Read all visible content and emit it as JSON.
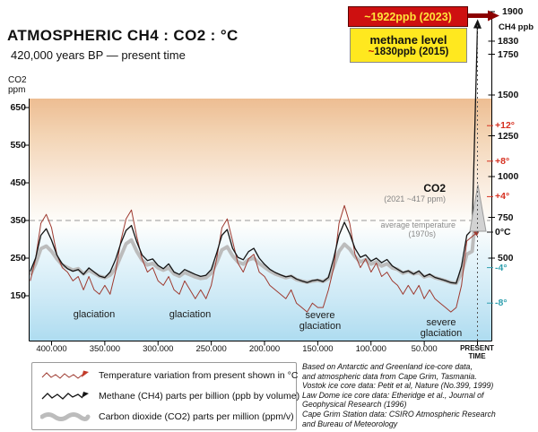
{
  "header": {
    "title": "ATMOSPHERIC  CH4 : CO2 : °C",
    "subtitle": "420,000 years BP — present time"
  },
  "callouts": {
    "methane_2023": "~1922ppb (2023)",
    "methane_level_title": "methane level",
    "methane_2015_prefix": "~",
    "methane_2015_value": "1830ppb (2015)"
  },
  "axes": {
    "top_right_value": "1900",
    "ch4_unit": "CH4 ppb",
    "co2_unit_line1": "CO2",
    "co2_unit_line2": "ppm",
    "co2_ticks": [
      650,
      550,
      450,
      350,
      250,
      150
    ],
    "ch4_ticks": [
      1830,
      1750,
      1500,
      1250,
      1000,
      750,
      500
    ],
    "temp_ticks": [
      "+12°",
      "+8°",
      "+4°",
      "0°C",
      "-4°",
      "-8°"
    ],
    "x_tick_labels": [
      "400.000",
      "350.000",
      "300.000",
      "250.000",
      "200.000",
      "150.000",
      "100.000",
      "50.000"
    ],
    "present_line1": "PRESENT",
    "present_line2": "TIME"
  },
  "annotations": {
    "glaciation_1": "glaciation",
    "glaciation_2": "glaciation",
    "severe_1_line1": "severe",
    "severe_1_line2": "glaciation",
    "severe_2_line1": "severe",
    "severe_2_line2": "glaciation",
    "co2_label": "CO2",
    "co2_sublabel": "(2021 ~417 ppm)",
    "avg_temp_line1": "average temperature",
    "avg_temp_line2": "(1970s)"
  },
  "legend": {
    "items": [
      {
        "label": "Temperature variation from present shown in °C"
      },
      {
        "label": "Methane (CH4) parts per billion (ppb by volume)"
      },
      {
        "label": "Carbon dioxide (CO2) parts per million (ppm/v)"
      }
    ]
  },
  "source": {
    "lines": [
      "Based on Antarctic and Greenland ice-core data,",
      "and atmospheric data from Cape Grim, Tasmania.",
      "Vostok ice core data: Petit et al, Nature (No.399, 1999)",
      "Law Dome ice core data: Etheridge et al., Journal of",
      "Geophysical Research (1996)",
      "Cape Grim Station data: CSIRO Atmospheric Research",
      "and Bureau of Meteorology"
    ]
  },
  "colors": {
    "red_box_bg": "#ce1010",
    "red_box_text": "#ffe43a",
    "yellow_box_bg": "#ffe81f",
    "dark_red_arrow": "#8b0000",
    "warm_tick": "#d63020",
    "cool_tick": "#2f9fae",
    "temp_line": "#9e3a30",
    "ch4_line": "#141414",
    "co2_line": "#bcbcbc"
  },
  "chart_data": {
    "type": "line",
    "title": "Atmospheric CH4, CO2 and temperature — 420,000 years BP to present",
    "x_unit": "thousand years before present",
    "x_range_kyr": [
      420,
      0
    ],
    "x_kyr_bp": [
      420,
      415,
      410,
      405,
      400,
      395,
      390,
      385,
      380,
      375,
      370,
      365,
      360,
      355,
      350,
      345,
      340,
      335,
      330,
      325,
      320,
      315,
      310,
      305,
      300,
      295,
      290,
      285,
      280,
      275,
      270,
      265,
      260,
      255,
      250,
      245,
      240,
      235,
      230,
      225,
      220,
      215,
      210,
      205,
      200,
      195,
      190,
      185,
      180,
      175,
      170,
      165,
      160,
      155,
      150,
      145,
      140,
      135,
      130,
      125,
      120,
      115,
      110,
      105,
      100,
      95,
      90,
      85,
      80,
      75,
      70,
      65,
      60,
      55,
      50,
      45,
      40,
      35,
      30,
      25,
      20,
      15,
      10,
      5,
      0
    ],
    "series": [
      {
        "name": "Temperature variation from present (°C)",
        "unit": "°C",
        "color": "#9e3a30",
        "axis_ticks": [
          12,
          8,
          4,
          0,
          -4,
          -8
        ],
        "values": [
          -5.5,
          -3,
          1,
          2,
          0.5,
          -2.5,
          -4,
          -4.5,
          -5.5,
          -5,
          -6.5,
          -5,
          -6.5,
          -7,
          -6,
          -7,
          -4.5,
          -1,
          1.5,
          2.5,
          -0.5,
          -3,
          -4.5,
          -4,
          -5.5,
          -6,
          -5,
          -6.5,
          -7,
          -5.5,
          -6.5,
          -7.5,
          -6.5,
          -7.5,
          -6,
          -3,
          0.5,
          1.5,
          -1,
          -3.5,
          -4.5,
          -3,
          -2.5,
          -4.5,
          -5,
          -6,
          -6.5,
          -7,
          -7.5,
          -6.5,
          -8,
          -8.5,
          -9,
          -8,
          -8.5,
          -8.5,
          -6.5,
          -4,
          1,
          3,
          1,
          -2.5,
          -4,
          -3,
          -4.5,
          -3.5,
          -5,
          -4.5,
          -5.5,
          -6,
          -7,
          -6,
          -7,
          -6,
          -7.5,
          -6.5,
          -7.5,
          -8,
          -8.5,
          -9,
          -8.5,
          -6,
          -1,
          -0.5,
          0
        ]
      },
      {
        "name": "Methane CH4 (ppb)",
        "unit": "ppb",
        "color": "#141414",
        "axis_ticks": [
          1900,
          1830,
          1750,
          1500,
          1250,
          1000,
          750,
          500
        ],
        "values": [
          420,
          500,
          640,
          680,
          610,
          520,
          465,
          435,
          420,
          430,
          400,
          440,
          415,
          390,
          380,
          415,
          490,
          590,
          670,
          700,
          600,
          520,
          485,
          495,
          455,
          435,
          465,
          415,
          400,
          430,
          415,
          400,
          388,
          395,
          430,
          530,
          640,
          675,
          560,
          505,
          490,
          540,
          560,
          500,
          462,
          432,
          412,
          398,
          385,
          392,
          372,
          360,
          350,
          362,
          367,
          356,
          382,
          500,
          640,
          720,
          650,
          560,
          505,
          520,
          482,
          500,
          472,
          492,
          452,
          432,
          412,
          422,
          402,
          422,
          387,
          402,
          382,
          372,
          362,
          350,
          346,
          450,
          640,
          675,
          1922
        ]
      },
      {
        "name": "Carbon dioxide CO2 (ppm)",
        "unit": "ppm",
        "color": "#bcbcbc",
        "axis_ticks": [
          650,
          550,
          450,
          350,
          250,
          150
        ],
        "values": [
          205,
          235,
          275,
          282,
          268,
          248,
          232,
          225,
          218,
          222,
          208,
          218,
          210,
          202,
          198,
          205,
          222,
          255,
          288,
          298,
          268,
          245,
          232,
          236,
          224,
          218,
          224,
          208,
          202,
          212,
          206,
          200,
          196,
          198,
          210,
          238,
          272,
          280,
          256,
          240,
          234,
          246,
          250,
          236,
          226,
          216,
          208,
          203,
          198,
          202,
          193,
          189,
          186,
          189,
          191,
          188,
          196,
          228,
          268,
          287,
          274,
          254,
          240,
          246,
          234,
          240,
          229,
          235,
          224,
          220,
          210,
          215,
          208,
          212,
          200,
          205,
          198,
          194,
          190,
          185,
          183,
          210,
          260,
          268,
          417
        ],
        "reference_dashed_line_ppm": 350
      }
    ],
    "highlights": {
      "ch4_2023_ppb": 1922,
      "ch4_2015_ppb": 1830,
      "co2_2021_ppm": 417,
      "average_temperature_reference": "1970s = 0°C"
    },
    "annotated_periods": [
      "glaciation",
      "glaciation",
      "severe glaciation",
      "severe glaciation"
    ],
    "legend_position": "bottom-left",
    "grid": "dashed horizontal reference lines"
  }
}
